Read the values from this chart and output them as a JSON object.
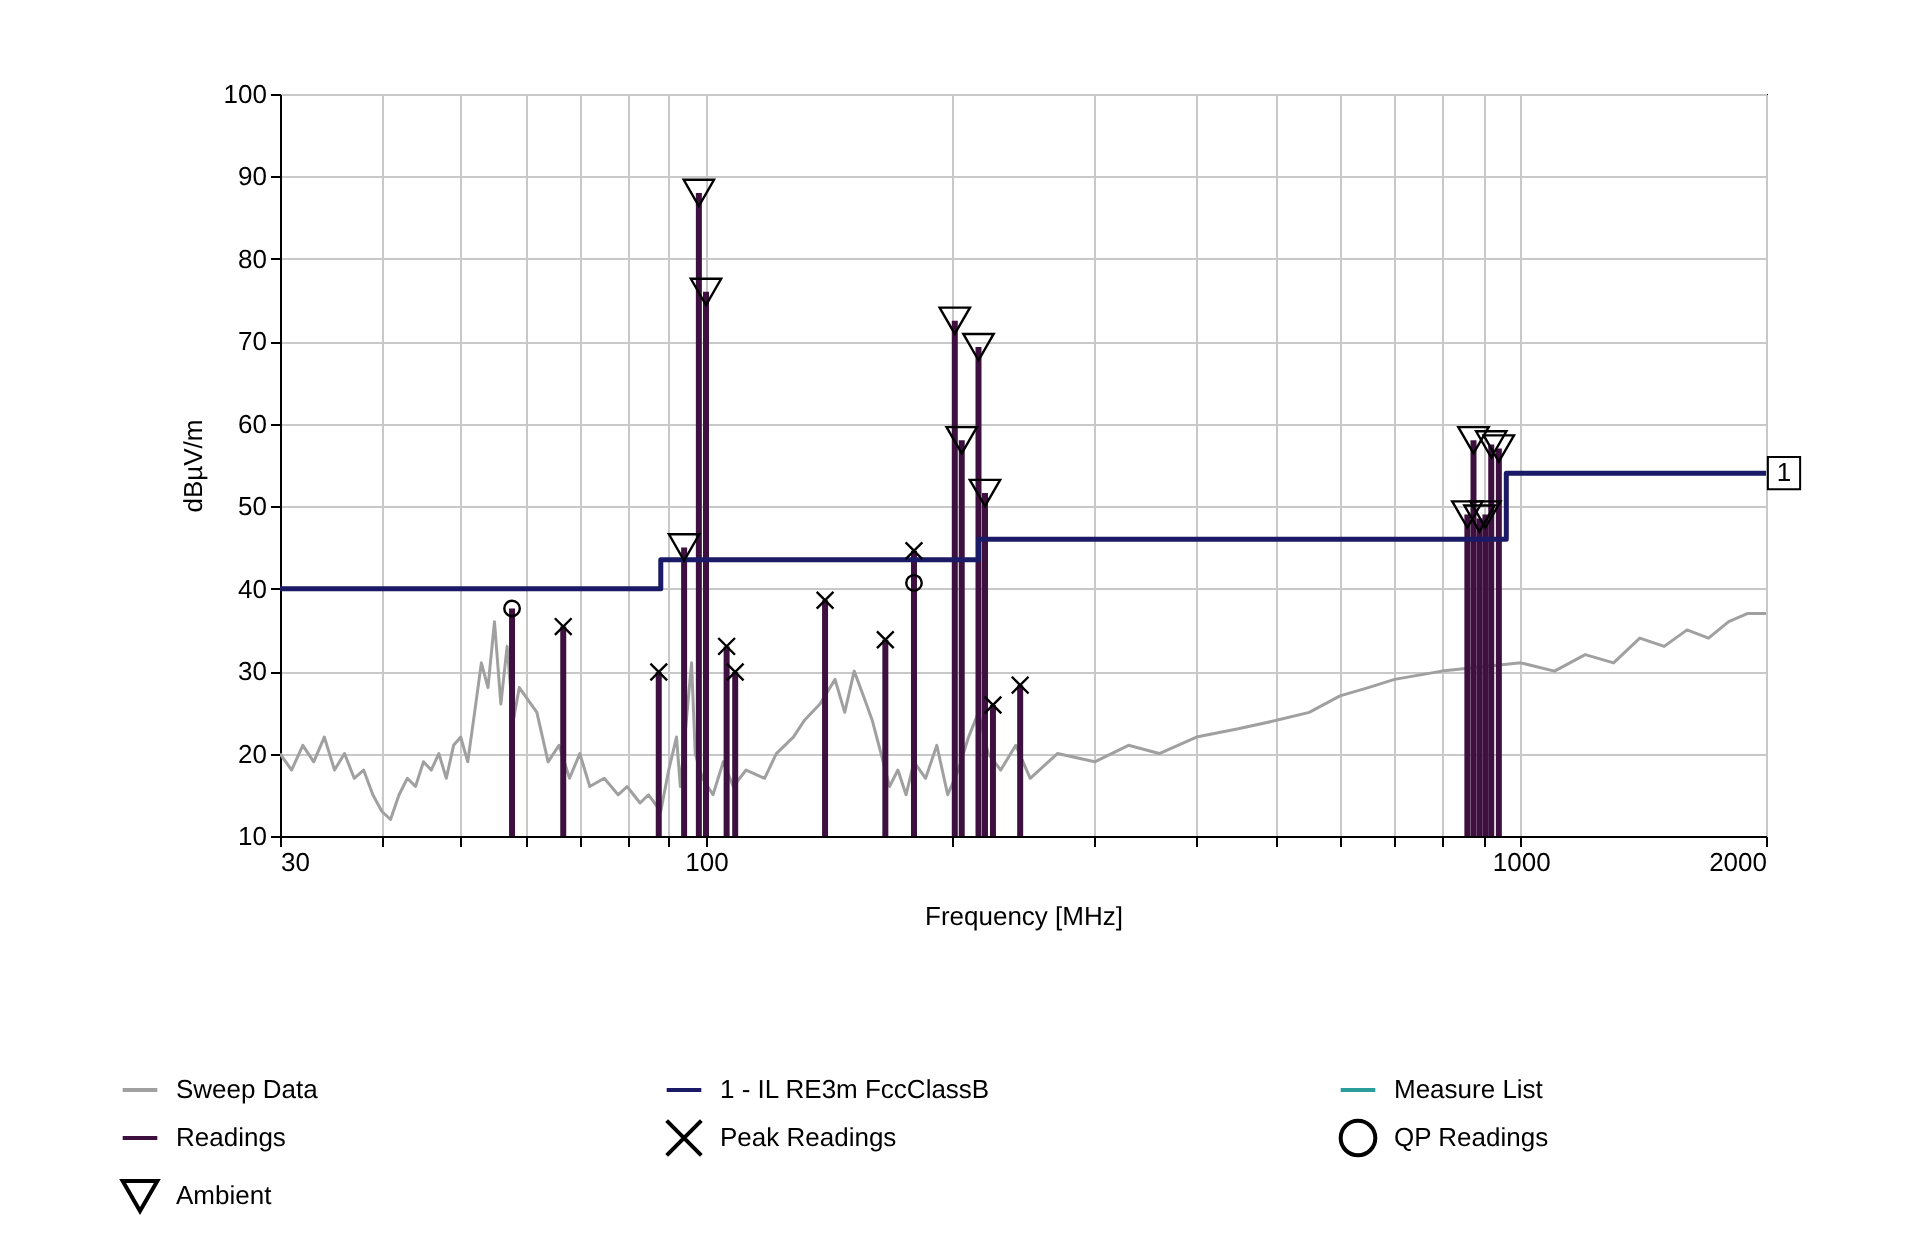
{
  "chart_data": {
    "type": "line",
    "xlabel": "Frequency [MHz]",
    "ylabel": "dBµV/m",
    "log": "x",
    "grid": true,
    "legend": "bottom",
    "xlim": [
      30,
      2000
    ],
    "ylim": [
      10,
      100
    ],
    "xticks": [
      30,
      {
        "value": 40,
        "label": null
      },
      {
        "value": 50,
        "label": null
      },
      {
        "value": 60,
        "label": null
      },
      {
        "value": 70,
        "label": null
      },
      {
        "value": 80,
        "label": null
      },
      {
        "value": 90,
        "label": null
      },
      100,
      {
        "value": 200,
        "label": null
      },
      {
        "value": 300,
        "label": null
      },
      {
        "value": 400,
        "label": null
      },
      {
        "value": 500,
        "label": null
      },
      {
        "value": 600,
        "label": null
      },
      {
        "value": 700,
        "label": null
      },
      {
        "value": 800,
        "label": null
      },
      {
        "value": 900,
        "label": null
      },
      1000,
      2000
    ],
    "yticks": [
      10,
      20,
      30,
      40,
      50,
      60,
      70,
      80,
      90,
      100
    ],
    "annotations": [
      {
        "text": "1",
        "x": 2000,
        "y": 54
      }
    ],
    "series": [
      {
        "name": "Sweep Data",
        "color": "#a0a0a0",
        "x": [
          30,
          31,
          32,
          33,
          34,
          35,
          36,
          37,
          38,
          39,
          40,
          41,
          42,
          43,
          44,
          45,
          46,
          47,
          48,
          49,
          50,
          51,
          52,
          53,
          54,
          55,
          56,
          57,
          58,
          59,
          62,
          64,
          66,
          68,
          70,
          72,
          75,
          78,
          80,
          83,
          85,
          88,
          90,
          92,
          93,
          96,
          97,
          99,
          102,
          105,
          108,
          112,
          118,
          122,
          128,
          132,
          138,
          144,
          148,
          152,
          156,
          160,
          164,
          168,
          172,
          176,
          180,
          186,
          192,
          198,
          204,
          210,
          216,
          222,
          230,
          240,
          250,
          270,
          300,
          330,
          360,
          400,
          450,
          500,
          550,
          600,
          650,
          700,
          800,
          1000,
          1100,
          1200,
          1300,
          1400,
          1500,
          1600,
          1700,
          1800,
          1900,
          2000
        ],
        "values": [
          20,
          18,
          21,
          19,
          22,
          18,
          20,
          17,
          18,
          15,
          13,
          12,
          15,
          17,
          16,
          19,
          18,
          20,
          17,
          21,
          22,
          19,
          25,
          31,
          28,
          36,
          26,
          33,
          24,
          28,
          25,
          19,
          21,
          17,
          20,
          16,
          17,
          15,
          16,
          14,
          15,
          13,
          18,
          22,
          16,
          31,
          20,
          17,
          15,
          19,
          16,
          18,
          17,
          20,
          22,
          24,
          26,
          29,
          25,
          30,
          27,
          24,
          20,
          16,
          18,
          15,
          19,
          17,
          21,
          15,
          18,
          22,
          25,
          20,
          18,
          21,
          17,
          20,
          19,
          21,
          20,
          22,
          23,
          24,
          25,
          27,
          28,
          29,
          30,
          31,
          30,
          32,
          31,
          34,
          33,
          35,
          34,
          36,
          37,
          37
        ]
      },
      {
        "name": "1 - IL RE3m FccClassB",
        "type": "step",
        "color": "#1a1a66",
        "x": [
          30,
          88,
          216,
          960,
          2000
        ],
        "values": [
          40,
          43.5,
          46,
          54,
          54
        ]
      },
      {
        "name": "Measure List",
        "type": "line",
        "color": "#2a9d9d"
      },
      {
        "name": "Readings",
        "type": "bar",
        "color": "#3d1040",
        "x": [
          57.8,
          66.8,
          87.5,
          94,
          98,
          100,
          106,
          108.6,
          140,
          166,
          180,
          202,
          206,
          216,
          220,
          225,
          243,
          860,
          875,
          890,
          905,
          920,
          940
        ],
        "values": [
          37.6,
          35.4,
          29.9,
          45,
          88,
          76,
          33,
          29.9,
          38.6,
          33.8,
          44.6,
          72.5,
          58,
          69.3,
          51.6,
          25.9,
          28.3,
          49,
          58,
          48.5,
          49,
          57.5,
          57
        ]
      },
      {
        "name": "Peak Readings",
        "type": "scatter",
        "marker": "cross",
        "color": "#000000",
        "x": [
          66.8,
          87.5,
          106,
          108.6,
          140,
          166,
          180,
          225,
          243
        ],
        "values": [
          35.4,
          29.9,
          33,
          29.9,
          38.6,
          33.8,
          44.6,
          25.9,
          28.3
        ]
      },
      {
        "name": "QP Readings",
        "type": "scatter",
        "marker": "circle",
        "color": "#000000",
        "x": [
          57.8,
          180
        ],
        "values": [
          37.6,
          40.7
        ]
      },
      {
        "name": "Ambient",
        "type": "scatter",
        "marker": "triangle",
        "color": "#000000",
        "x": [
          94,
          98,
          100,
          202,
          206,
          216,
          220,
          860,
          875,
          890,
          905,
          920,
          940
        ],
        "values": [
          45,
          88,
          76,
          72.5,
          58,
          69.3,
          51.6,
          49,
          58,
          48.5,
          49,
          57.5,
          57
        ]
      }
    ]
  }
}
